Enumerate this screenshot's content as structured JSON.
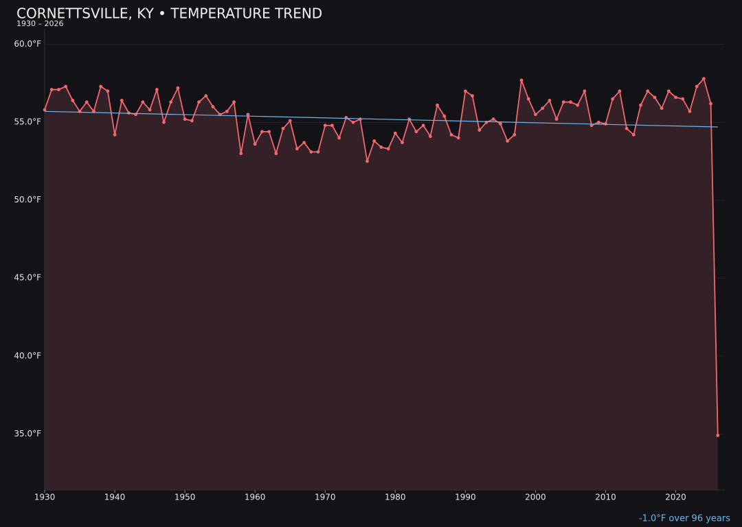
{
  "chart_data": {
    "type": "line",
    "title": "CORNETTSVILLE, KY • TEMPERATURE TREND",
    "subtitle": "1930 – 2026",
    "annotation": "-1.0°F over 96 years",
    "x": [
      1930,
      1931,
      1932,
      1933,
      1934,
      1935,
      1936,
      1937,
      1938,
      1939,
      1940,
      1941,
      1942,
      1943,
      1944,
      1945,
      1946,
      1947,
      1948,
      1949,
      1950,
      1951,
      1952,
      1953,
      1954,
      1955,
      1956,
      1957,
      1958,
      1959,
      1960,
      1961,
      1962,
      1963,
      1964,
      1965,
      1966,
      1967,
      1968,
      1969,
      1970,
      1971,
      1972,
      1973,
      1974,
      1975,
      1976,
      1977,
      1978,
      1979,
      1980,
      1981,
      1982,
      1983,
      1984,
      1985,
      1986,
      1987,
      1988,
      1989,
      1990,
      1991,
      1992,
      1993,
      1994,
      1995,
      1996,
      1997,
      1998,
      1999,
      2000,
      2001,
      2002,
      2003,
      2004,
      2005,
      2006,
      2007,
      2008,
      2009,
      2010,
      2011,
      2012,
      2013,
      2014,
      2015,
      2016,
      2017,
      2018,
      2019,
      2020,
      2021,
      2022,
      2023,
      2024,
      2025,
      2026
    ],
    "values": [
      55.8,
      57.1,
      57.1,
      57.3,
      56.4,
      55.7,
      56.3,
      55.7,
      57.3,
      57.0,
      54.2,
      56.4,
      55.6,
      55.5,
      56.3,
      55.8,
      57.1,
      55.0,
      56.3,
      57.2,
      55.2,
      55.1,
      56.3,
      56.7,
      56.0,
      55.5,
      55.7,
      56.3,
      53.0,
      55.5,
      53.6,
      54.4,
      54.4,
      53.0,
      54.6,
      55.1,
      53.3,
      53.7,
      53.1,
      53.1,
      54.8,
      54.8,
      54.0,
      55.3,
      55.0,
      55.2,
      52.5,
      53.8,
      53.4,
      53.3,
      54.3,
      53.7,
      55.2,
      54.4,
      54.8,
      54.1,
      56.1,
      55.4,
      54.2,
      54.0,
      57.0,
      56.7,
      54.5,
      55.0,
      55.2,
      54.9,
      53.8,
      54.2,
      57.7,
      56.5,
      55.5,
      55.9,
      56.4,
      55.2,
      56.3,
      56.3,
      56.1,
      57.0,
      54.8,
      55.0,
      54.9,
      56.5,
      57.0,
      54.6,
      54.2,
      56.1,
      57.0,
      56.6,
      55.9,
      57.0,
      56.6,
      56.5,
      55.7,
      57.3,
      57.8,
      56.2,
      34.9
    ],
    "color": "#f2686e",
    "area_color": "#342027",
    "trend": {
      "x": [
        1930,
        2026
      ],
      "values": [
        55.7,
        54.7
      ],
      "color": "#6cb8ec"
    },
    "xlim": [
      1930,
      2027
    ],
    "ylim": [
      31.4,
      61.0
    ],
    "xticks": [
      1930,
      1940,
      1950,
      1960,
      1970,
      1980,
      1990,
      2000,
      2010,
      2020
    ],
    "yticks": [
      {
        "value": 35,
        "label": "35.0°F"
      },
      {
        "value": 40,
        "label": "40.0°F"
      },
      {
        "value": 45,
        "label": "45.0°F"
      },
      {
        "value": 50,
        "label": "50.0°F"
      },
      {
        "value": 55,
        "label": "55.0°F"
      },
      {
        "value": 60,
        "label": "60.0°F"
      }
    ],
    "grid": true
  }
}
